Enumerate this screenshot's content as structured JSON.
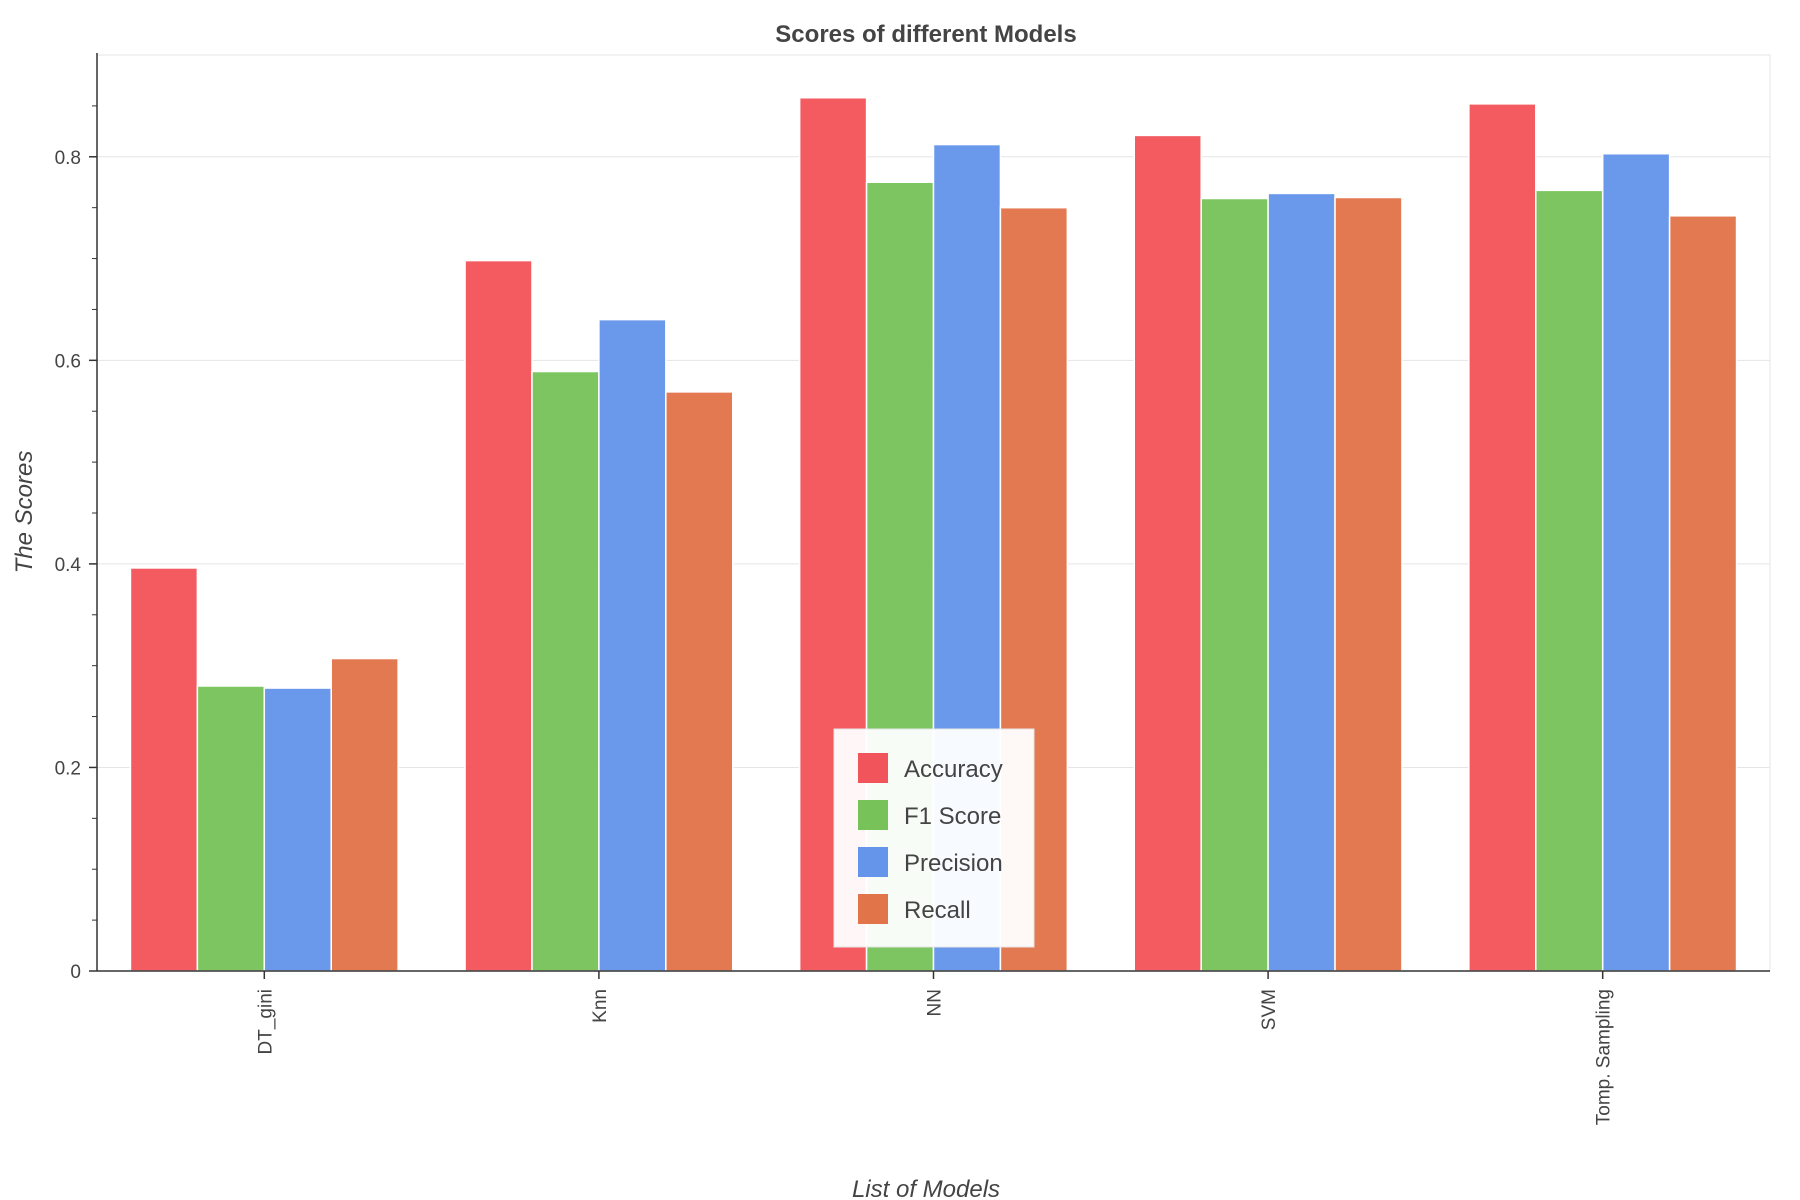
{
  "chart_data": {
    "type": "bar",
    "title": "Scores of different Models",
    "xlabel": "List of Models",
    "ylabel": "The Scores",
    "categories": [
      "DT_gini",
      "Knn",
      "NN",
      "SVM",
      "Tomp. Sampling"
    ],
    "series": [
      {
        "name": "Accuracy",
        "color": "#f2545b",
        "values": [
          0.396,
          0.698,
          0.858,
          0.821,
          0.852
        ]
      },
      {
        "name": "F1 Score",
        "color": "#77c35a",
        "values": [
          0.28,
          0.589,
          0.775,
          0.759,
          0.767
        ]
      },
      {
        "name": "Precision",
        "color": "#6495ea",
        "values": [
          0.278,
          0.64,
          0.812,
          0.764,
          0.803
        ]
      },
      {
        "name": "Recall",
        "color": "#e2744a",
        "values": [
          0.307,
          0.569,
          0.75,
          0.76,
          0.742
        ]
      }
    ],
    "ylim": [
      0,
      0.9
    ],
    "yticks": [
      0,
      0.2,
      0.4,
      0.6,
      0.8
    ],
    "ytick_labels": [
      "0",
      "0.2",
      "0.4",
      "0.6",
      "0.8"
    ],
    "grid": true,
    "legend_position": "bottom-center",
    "xtick_label_rotation": "vertical"
  }
}
